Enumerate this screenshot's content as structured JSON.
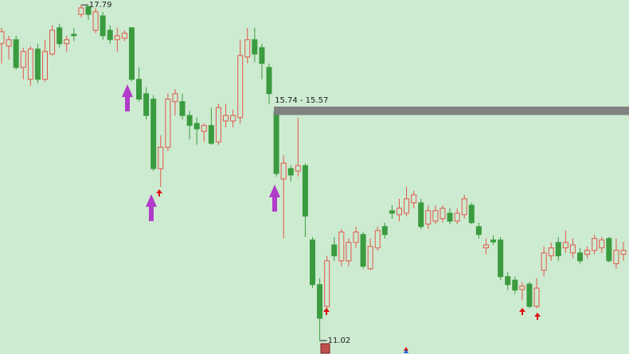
{
  "chart_data": {
    "type": "candlestick",
    "up_color": "#e2574c",
    "down_color": "#3a9b3f",
    "background": "#cdebd0",
    "ylim": [
      10.75,
      17.89
    ],
    "open": [
      17.01,
      16.96,
      17.09,
      16.53,
      16.29,
      16.9,
      16.29,
      16.8,
      17.33,
      17.01,
      17.2,
      17.6,
      17.76,
      17.28,
      17.57,
      17.28,
      17.09,
      17.12,
      17.33,
      16.29,
      16.0,
      15.89,
      14.49,
      14.92,
      15.84,
      15.84,
      15.56,
      15.4,
      15.24,
      15.36,
      15.03,
      15.45,
      15.45,
      15.52,
      16.74,
      17.09,
      16.93,
      16.53,
      15.65,
      14.28,
      14.49,
      14.44,
      14.55,
      13.05,
      12.15,
      11.71,
      12.95,
      12.63,
      12.63,
      13.0,
      13.16,
      12.47,
      12.89,
      13.32,
      13.64,
      13.56,
      13.59,
      13.8,
      13.8,
      13.37,
      13.43,
      13.48,
      13.59,
      13.43,
      13.56,
      13.75,
      13.32,
      12.89,
      13.05,
      13.05,
      12.31,
      12.24,
      12.05,
      12.16,
      11.71,
      12.44,
      12.73,
      13.0,
      12.89,
      12.79,
      12.79,
      12.76,
      12.84,
      12.89,
      13.08,
      12.57,
      12.76
    ],
    "high": [
      17.33,
      17.17,
      17.17,
      16.93,
      16.96,
      17.01,
      17.09,
      17.38,
      17.41,
      17.17,
      17.33,
      17.79,
      17.76,
      17.73,
      17.65,
      17.38,
      17.33,
      17.28,
      17.33,
      16.53,
      16.13,
      15.97,
      15.16,
      16.0,
      16.09,
      16.0,
      15.65,
      15.52,
      15.4,
      15.72,
      15.8,
      15.8,
      15.68,
      17.09,
      17.33,
      17.33,
      17.01,
      16.61,
      15.68,
      14.76,
      14.55,
      15.52,
      14.6,
      13.11,
      12.28,
      12.73,
      13.11,
      13.27,
      13.08,
      13.32,
      13.21,
      13.08,
      13.32,
      13.4,
      13.75,
      13.88,
      14.12,
      14.04,
      13.88,
      13.75,
      13.75,
      13.75,
      13.69,
      13.69,
      13.96,
      13.8,
      13.4,
      13.08,
      13.14,
      13.11,
      12.4,
      12.31,
      12.2,
      12.2,
      12.28,
      12.92,
      13.0,
      13.11,
      13.24,
      13.08,
      12.89,
      12.92,
      13.16,
      13.11,
      13.11,
      13.08,
      13.01
    ],
    "low": [
      16.61,
      16.69,
      16.48,
      16.29,
      16.16,
      16.21,
      16.24,
      16.77,
      16.93,
      16.85,
      17.06,
      17.54,
      17.49,
      17.22,
      17.09,
      17.01,
      16.85,
      17.06,
      16.25,
      15.84,
      15.48,
      14.44,
      14.12,
      14.84,
      15.56,
      15.48,
      15.08,
      14.97,
      15.03,
      14.97,
      14.97,
      15.32,
      15.32,
      15.4,
      16.61,
      16.64,
      16.29,
      15.8,
      14.33,
      13.08,
      14.23,
      14.33,
      13.11,
      12.08,
      11.02,
      11.63,
      12.63,
      12.52,
      12.52,
      12.89,
      12.47,
      12.44,
      12.84,
      13.08,
      13.48,
      13.43,
      13.53,
      13.69,
      13.27,
      13.27,
      13.37,
      13.4,
      13.37,
      13.37,
      13.48,
      13.37,
      13.08,
      12.76,
      12.95,
      12.24,
      12.04,
      11.96,
      11.83,
      11.67,
      11.67,
      12.31,
      12.63,
      12.63,
      12.79,
      12.68,
      12.57,
      12.68,
      12.76,
      12.79,
      12.6,
      12.47,
      12.63
    ],
    "close": [
      17.25,
      17.09,
      16.53,
      16.85,
      16.9,
      16.29,
      16.85,
      17.28,
      17.01,
      17.09,
      17.17,
      17.73,
      17.6,
      17.65,
      17.17,
      17.09,
      17.17,
      17.22,
      16.29,
      15.89,
      15.56,
      14.49,
      14.92,
      15.89,
      16.0,
      15.56,
      15.36,
      15.29,
      15.36,
      15.0,
      15.72,
      15.56,
      15.56,
      16.77,
      17.09,
      16.8,
      16.61,
      16.0,
      14.39,
      14.6,
      14.36,
      14.55,
      13.53,
      12.15,
      11.47,
      12.63,
      12.73,
      13.21,
      13.0,
      13.21,
      12.52,
      12.92,
      13.24,
      13.16,
      13.59,
      13.69,
      13.88,
      13.96,
      13.32,
      13.64,
      13.64,
      13.69,
      13.43,
      13.59,
      13.88,
      13.4,
      13.16,
      12.95,
      13.01,
      12.31,
      12.15,
      12.04,
      12.12,
      11.71,
      12.08,
      12.79,
      12.89,
      12.73,
      13.0,
      12.95,
      12.63,
      12.84,
      13.08,
      13.05,
      12.63,
      12.84,
      12.84
    ],
    "gap": {
      "label": "15.74 - 15.57",
      "high": 15.74,
      "low": 15.57,
      "color": "#808080"
    }
  }
}
